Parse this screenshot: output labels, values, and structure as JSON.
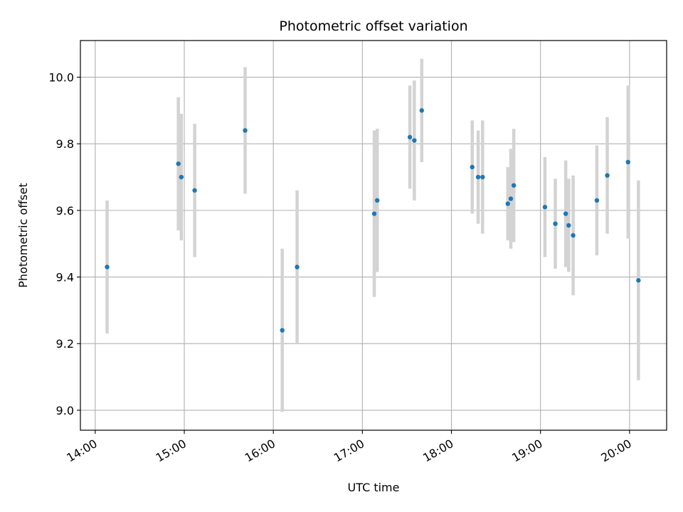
{
  "chart_data": {
    "type": "scatter",
    "title": "Photometric offset variation",
    "xlabel": "UTC time",
    "ylabel": "Photometric offset",
    "x_ticks": [
      "14:00",
      "15:00",
      "16:00",
      "17:00",
      "18:00",
      "19:00",
      "20:00"
    ],
    "y_ticks": [
      "9.0",
      "9.2",
      "9.4",
      "9.6",
      "9.8",
      "10.0"
    ],
    "xlim": [
      "13:50",
      "20:25"
    ],
    "ylim": [
      8.94,
      10.11
    ],
    "grid": true,
    "point_color": "#1f77b4",
    "errorbar_color": "#d3d3d3",
    "points": [
      {
        "x": "14:08",
        "y": 9.43,
        "err": 0.2
      },
      {
        "x": "14:56",
        "y": 9.74,
        "err": 0.2
      },
      {
        "x": "14:58",
        "y": 9.7,
        "err": 0.19
      },
      {
        "x": "15:07",
        "y": 9.66,
        "err": 0.2
      },
      {
        "x": "15:41",
        "y": 9.84,
        "err": 0.19
      },
      {
        "x": "16:06",
        "y": 9.24,
        "err": 0.245
      },
      {
        "x": "16:16",
        "y": 9.43,
        "err": 0.23
      },
      {
        "x": "17:08",
        "y": 9.59,
        "err": 0.25
      },
      {
        "x": "17:10",
        "y": 9.63,
        "err": 0.215
      },
      {
        "x": "17:32",
        "y": 9.82,
        "err": 0.155
      },
      {
        "x": "17:35",
        "y": 9.81,
        "err": 0.18
      },
      {
        "x": "17:40",
        "y": 9.9,
        "err": 0.155
      },
      {
        "x": "18:14",
        "y": 9.73,
        "err": 0.14
      },
      {
        "x": "18:18",
        "y": 9.7,
        "err": 0.14
      },
      {
        "x": "18:21",
        "y": 9.7,
        "err": 0.17
      },
      {
        "x": "18:38",
        "y": 9.62,
        "err": 0.11
      },
      {
        "x": "18:40",
        "y": 9.635,
        "err": 0.15
      },
      {
        "x": "18:42",
        "y": 9.675,
        "err": 0.17
      },
      {
        "x": "19:03",
        "y": 9.61,
        "err": 0.15
      },
      {
        "x": "19:10",
        "y": 9.56,
        "err": 0.135
      },
      {
        "x": "19:17",
        "y": 9.59,
        "err": 0.16
      },
      {
        "x": "19:19",
        "y": 9.555,
        "err": 0.14
      },
      {
        "x": "19:22",
        "y": 9.525,
        "err": 0.18
      },
      {
        "x": "19:38",
        "y": 9.63,
        "err": 0.165
      },
      {
        "x": "19:45",
        "y": 9.705,
        "err": 0.175
      },
      {
        "x": "19:59",
        "y": 9.745,
        "err": 0.23
      },
      {
        "x": "20:06",
        "y": 9.39,
        "err": 0.3
      }
    ]
  }
}
